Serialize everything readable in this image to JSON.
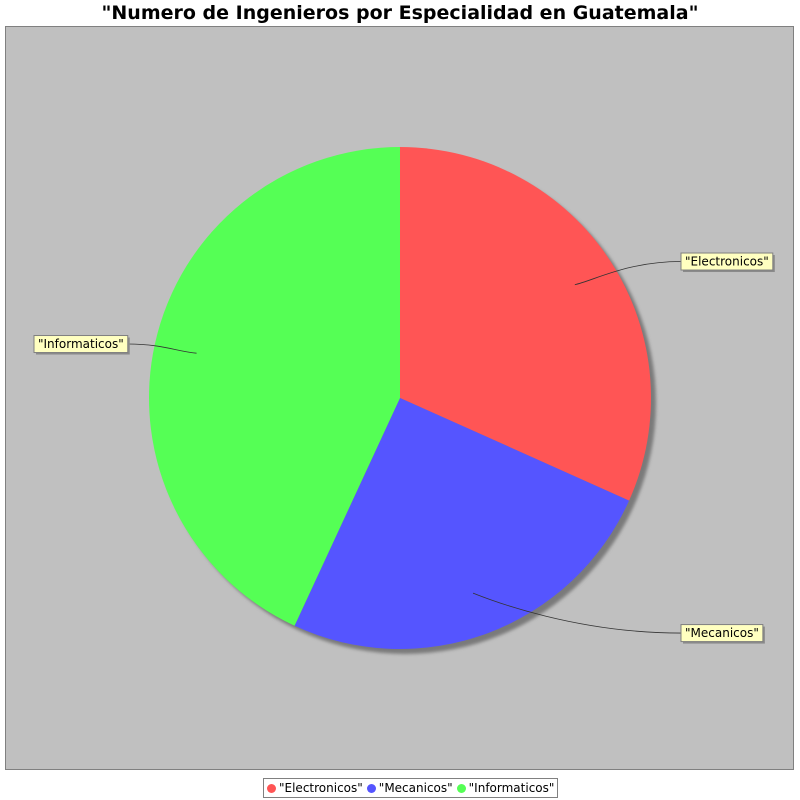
{
  "chart_data": {
    "type": "pie",
    "title": "\"Numero de Ingenieros por Especialidad en Guatemala\"",
    "categories": [
      "\"Electronicos\"",
      "\"Mecanicos\"",
      "\"Informaticos\""
    ],
    "values": [
      31.7,
      25.2,
      43.1
    ],
    "colors": [
      "#ff5555",
      "#5555ff",
      "#55ff55"
    ],
    "legend": "bottom"
  },
  "colors": {
    "plot_background": "#c0c0c0",
    "label_background": "#ffffc0"
  }
}
